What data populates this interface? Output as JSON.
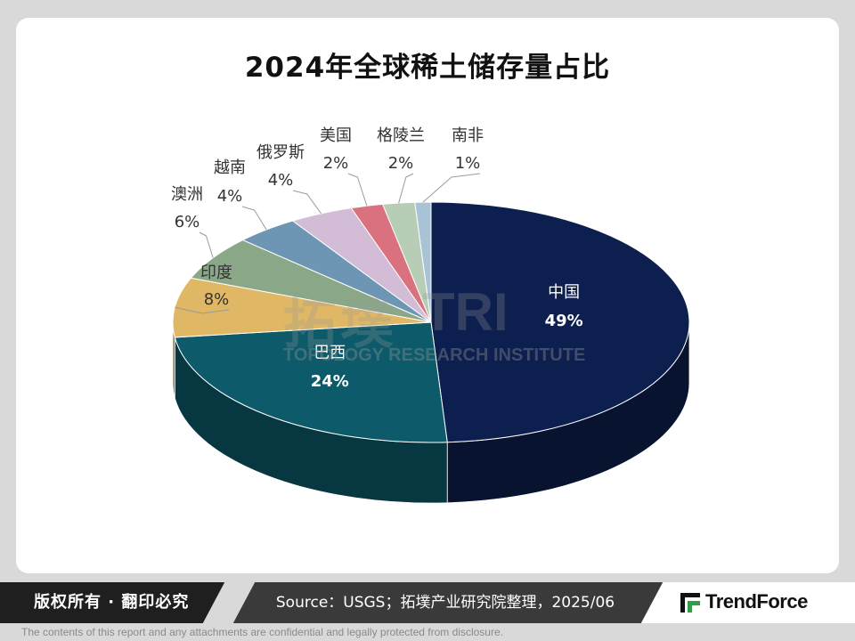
{
  "chart_data": {
    "type": "pie",
    "title": "2024年全球稀土储存量占比",
    "slices": [
      {
        "label": "中国",
        "value": 49,
        "display": "49%",
        "color": "#0d1f4e",
        "label_style": "inside"
      },
      {
        "label": "巴西",
        "value": 24,
        "display": "24%",
        "color": "#0c5a6a",
        "label_style": "inside"
      },
      {
        "label": "印度",
        "value": 8,
        "display": "8%",
        "color": "#e0b865",
        "label_style": "outside"
      },
      {
        "label": "澳洲",
        "value": 6,
        "display": "6%",
        "color": "#8aa888",
        "label_style": "outside"
      },
      {
        "label": "越南",
        "value": 4,
        "display": "4%",
        "color": "#6d95b4",
        "label_style": "outside"
      },
      {
        "label": "俄罗斯",
        "value": 4,
        "display": "4%",
        "color": "#d2bcd6",
        "label_style": "outside"
      },
      {
        "label": "美国",
        "value": 2,
        "display": "2%",
        "color": "#d9717f",
        "label_style": "outside"
      },
      {
        "label": "格陵兰",
        "value": 2,
        "display": "2%",
        "color": "#b8cdb6",
        "label_style": "outside"
      },
      {
        "label": "南非",
        "value": 1,
        "display": "1%",
        "color": "#a9c3d6",
        "label_style": "outside"
      }
    ]
  },
  "watermark": {
    "cn": "拓墣",
    "mark": "TRI",
    "en": "TOPOLOGY RESEARCH INSTITUTE"
  },
  "footer": {
    "copyright": "版权所有 · 翻印必究",
    "source": "Source：USGS；拓墣产业研究院整理，2025/06",
    "logo_text": "TrendForce",
    "disclaimer": "The contents of this report and any attachments are confidential and legally protected from disclosure."
  }
}
